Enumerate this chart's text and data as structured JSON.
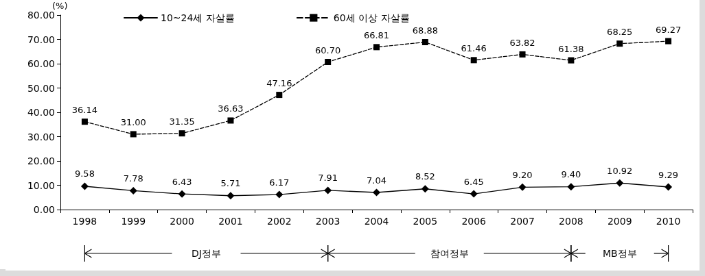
{
  "chart_data": {
    "type": "line",
    "ylabel": "(%)",
    "categories": [
      "1998",
      "1999",
      "2000",
      "2001",
      "2002",
      "2003",
      "2004",
      "2005",
      "2006",
      "2007",
      "2008",
      "2009",
      "2010"
    ],
    "series": [
      {
        "name": "10~24세 자살률",
        "color": "#000000",
        "marker": "diamond",
        "line_style": "solid",
        "values": [
          9.58,
          7.78,
          6.43,
          5.71,
          6.17,
          7.91,
          7.04,
          8.52,
          6.45,
          9.2,
          9.4,
          10.92,
          9.29
        ],
        "value_labels": [
          "9.58",
          "7.78",
          "6.43",
          "5.71",
          "6.17",
          "7.91",
          "7.04",
          "8.52",
          "6.45",
          "9.20",
          "9.40",
          "10.92",
          "9.29"
        ]
      },
      {
        "name": "60세 이상 자살률",
        "color": "#000000",
        "marker": "square",
        "line_style": "dashed",
        "values": [
          36.14,
          31,
          31.35,
          36.63,
          47.16,
          60.7,
          66.81,
          68.88,
          61.46,
          63.82,
          61.38,
          68.25,
          69.27
        ],
        "value_labels": [
          "36.14",
          "31.00",
          "31.35",
          "36.63",
          "47.16",
          "60.70",
          "66.81",
          "68.88",
          "61.46",
          "63.82",
          "61.38",
          "68.25",
          "69.27"
        ]
      }
    ],
    "ylim": [
      0,
      80
    ],
    "yticks": [
      {
        "value": 0,
        "label": "0.00"
      },
      {
        "value": 10,
        "label": "10.00"
      },
      {
        "value": 20,
        "label": "20.00"
      },
      {
        "value": 30,
        "label": "30.00"
      },
      {
        "value": 40,
        "label": "40.00"
      },
      {
        "value": 50,
        "label": "50.00"
      },
      {
        "value": 60,
        "label": "60.00"
      },
      {
        "value": 70,
        "label": "70.00"
      },
      {
        "value": 80,
        "label": "80.00"
      }
    ],
    "grid": false,
    "legend": "top left",
    "annotations": [
      "DJ정부",
      "참여정부",
      "MB정부"
    ]
  }
}
